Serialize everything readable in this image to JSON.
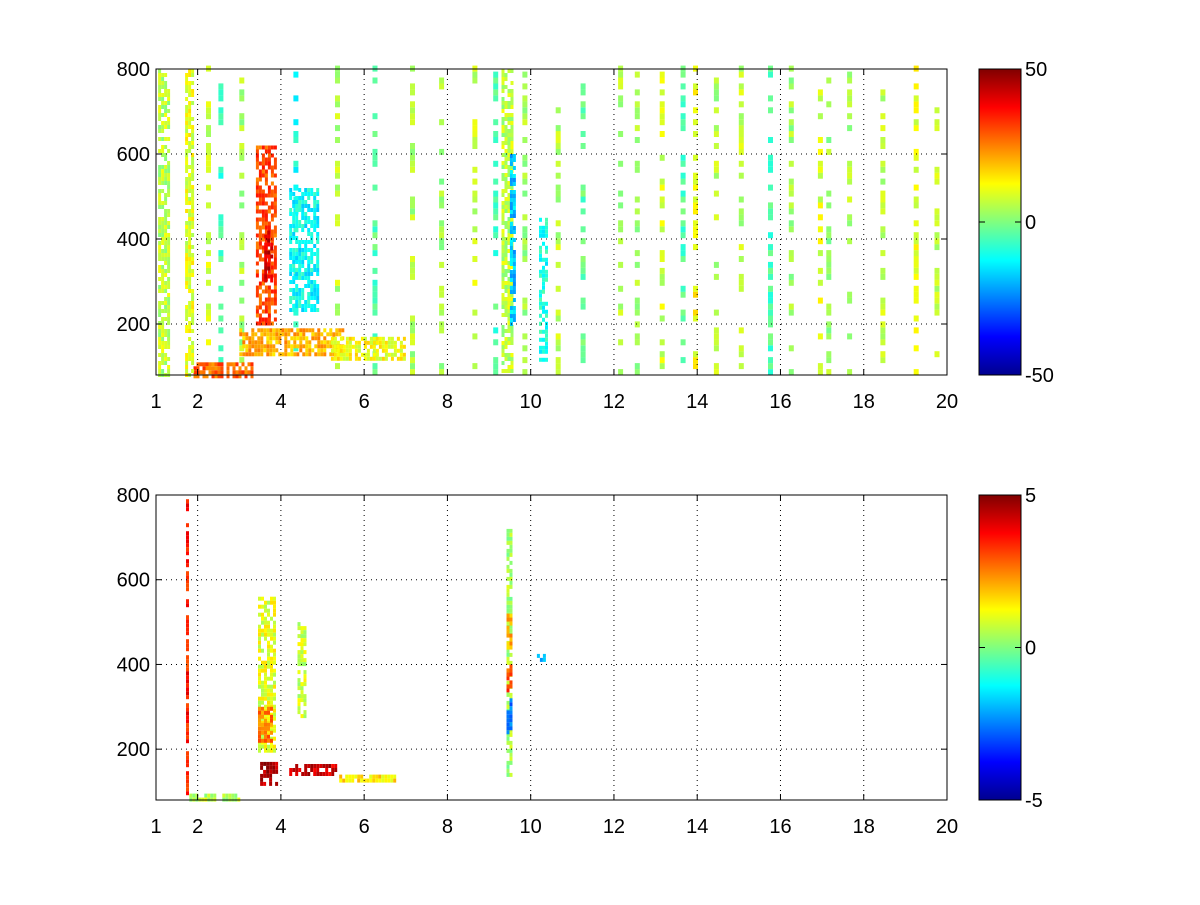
{
  "chart_data": [
    {
      "type": "heatmap",
      "title": "",
      "xlabel": "",
      "ylabel": "",
      "xlim": [
        1,
        20
      ],
      "ylim": [
        80,
        800
      ],
      "x_ticks": [
        1,
        2,
        4,
        6,
        8,
        10,
        12,
        14,
        16,
        18,
        20
      ],
      "y_ticks": [
        200,
        400,
        600,
        800
      ],
      "grid": true,
      "colormap": "jet",
      "colorbar": {
        "min": -50,
        "max": 50,
        "ticks": [
          50,
          0,
          -50
        ]
      },
      "regions": [
        {
          "x": [
            3.4,
            3.9
          ],
          "y": [
            200,
            620
          ],
          "value": 30
        },
        {
          "x": [
            3.6,
            3.8
          ],
          "y": [
            300,
            420
          ],
          "value": 42
        },
        {
          "x": [
            3.0,
            5.5
          ],
          "y": [
            130,
            190
          ],
          "value": 20
        },
        {
          "x": [
            1.9,
            3.3
          ],
          "y": [
            80,
            110
          ],
          "value": 28
        },
        {
          "x": [
            4.2,
            4.9
          ],
          "y": [
            230,
            520
          ],
          "value": -12
        },
        {
          "x": [
            5.2,
            7.0
          ],
          "y": [
            120,
            170
          ],
          "value": 12
        },
        {
          "x": [
            1.7,
            1.85
          ],
          "y": [
            80,
            800
          ],
          "value": 10
        },
        {
          "x": [
            1.05,
            1.3
          ],
          "y": [
            80,
            800
          ],
          "value": 6
        },
        {
          "x": [
            9.3,
            9.55
          ],
          "y": [
            90,
            800
          ],
          "value": 6
        },
        {
          "x": [
            9.5,
            9.6
          ],
          "y": [
            200,
            600
          ],
          "value": -18
        },
        {
          "x": [
            10.2,
            10.35
          ],
          "y": [
            120,
            450
          ],
          "value": -10
        }
      ],
      "stripes_x": [
        2.2,
        2.5,
        3.0,
        4.3,
        5.3,
        6.2,
        7.1,
        7.8,
        8.6,
        9.1,
        9.8,
        10.6,
        11.2,
        12.1,
        12.5,
        13.1,
        13.6,
        13.9,
        14.4,
        15.0,
        15.7,
        16.2,
        16.9,
        17.1,
        17.6,
        18.4,
        19.2,
        19.7
      ],
      "stripe_values": [
        8,
        -6,
        4,
        -10,
        6,
        -4,
        5,
        3,
        7,
        -5,
        4,
        6,
        -3,
        5,
        3,
        8,
        -4,
        12,
        5,
        6,
        -5,
        4,
        9,
        3,
        5,
        6,
        10,
        7
      ]
    },
    {
      "type": "heatmap",
      "title": "",
      "xlabel": "",
      "ylabel": "",
      "xlim": [
        1,
        20
      ],
      "ylim": [
        80,
        800
      ],
      "x_ticks": [
        1,
        2,
        4,
        6,
        8,
        10,
        12,
        14,
        16,
        18,
        20
      ],
      "y_ticks": [
        200,
        400,
        600,
        800
      ],
      "grid": true,
      "colormap": "jet",
      "colorbar": {
        "min": -5,
        "max": 5,
        "ticks": [
          5,
          0,
          -5
        ]
      },
      "regions": [
        {
          "x": [
            3.45,
            3.85
          ],
          "y": [
            200,
            560
          ],
          "value": 1.0
        },
        {
          "x": [
            3.45,
            3.75
          ],
          "y": [
            220,
            300
          ],
          "value": 2.6
        },
        {
          "x": [
            3.5,
            3.9
          ],
          "y": [
            120,
            170
          ],
          "value": 4.5
        },
        {
          "x": [
            4.2,
            5.3
          ],
          "y": [
            140,
            165
          ],
          "value": 4.2
        },
        {
          "x": [
            5.4,
            6.7
          ],
          "y": [
            125,
            140
          ],
          "value": 1.5
        },
        {
          "x": [
            1.8,
            3.0
          ],
          "y": [
            80,
            95
          ],
          "value": 0.6
        },
        {
          "x": [
            4.4,
            4.6
          ],
          "y": [
            280,
            500
          ],
          "value": 0.8
        },
        {
          "x": [
            9.42,
            9.52
          ],
          "y": [
            140,
            720
          ],
          "value": 0.4
        },
        {
          "x": [
            9.42,
            9.52
          ],
          "y": [
            240,
            320
          ],
          "value": -2.5
        },
        {
          "x": [
            9.42,
            9.52
          ],
          "y": [
            340,
            400
          ],
          "value": 3.0
        },
        {
          "x": [
            9.42,
            9.52
          ],
          "y": [
            440,
            520
          ],
          "value": 2.0
        },
        {
          "x": [
            10.15,
            10.3
          ],
          "y": [
            410,
            425
          ],
          "value": -2.2
        },
        {
          "x": [
            1.72,
            1.78
          ],
          "y": [
            80,
            790
          ],
          "value": 3.5
        }
      ],
      "stripes_x": [],
      "stripe_values": []
    }
  ]
}
